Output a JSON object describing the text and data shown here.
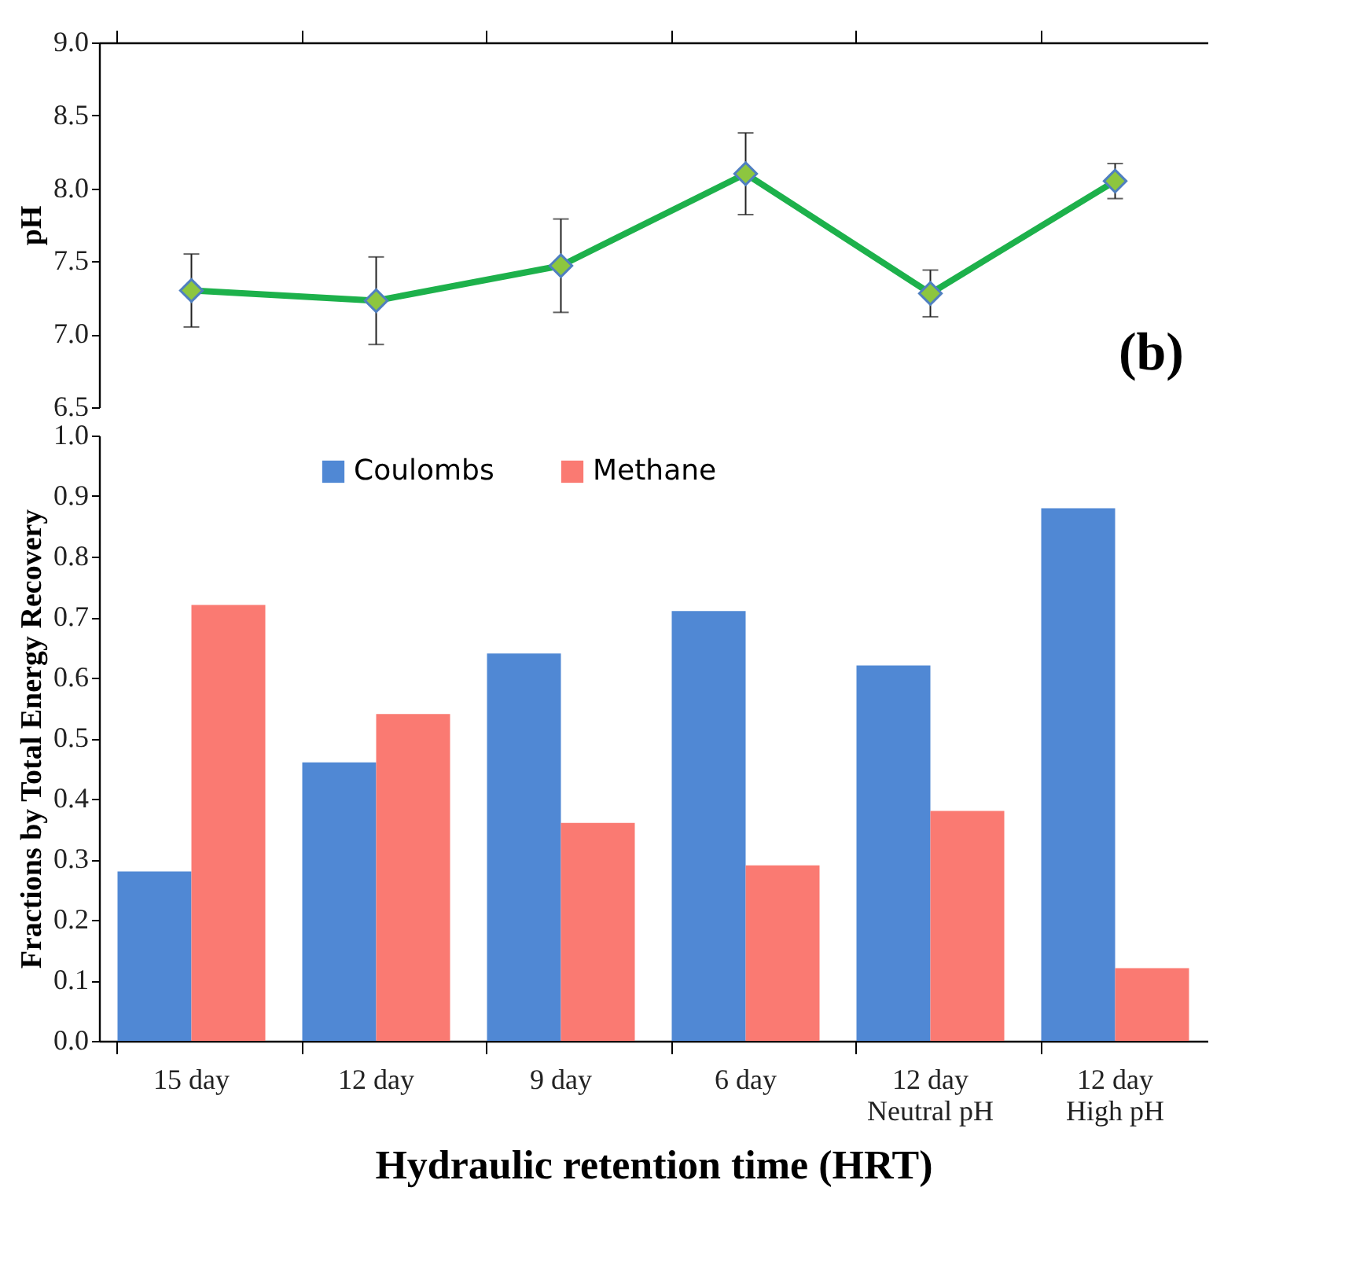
{
  "chart_data": [
    {
      "type": "line",
      "categories": [
        null,
        null,
        null,
        null,
        null,
        null
      ],
      "ylabel": "pH",
      "ylim": [
        6.5,
        9.0
      ],
      "yticks": [
        6.5,
        {
          "value": 7,
          "label": "7.0"
        },
        7.5,
        {
          "value": 8,
          "label": "8.0"
        },
        8.5,
        {
          "value": 9,
          "label": "9.0"
        }
      ],
      "tick_labels": "y",
      "marker": "diamond",
      "annotations": [
        "(b)"
      ],
      "series": [
        {
          "color": "#1db14b",
          "values": [
            7.3,
            7.23,
            7.47,
            8.1,
            7.28,
            8.05
          ],
          "errors": [
            0.25,
            0.3,
            0.32,
            0.28,
            0.16,
            0.12
          ]
        }
      ]
    },
    {
      "type": "bar",
      "categories": [
        "15 day",
        "12 day",
        "9 day",
        "6 day",
        "12 day\nNeutral pH",
        "12 day\nHigh pH"
      ],
      "xlabel": "Hydraulic retention time (HRT)",
      "ylabel": "Fractions by Total Energy Recovery",
      "ylim": [
        0,
        1
      ],
      "yticks": [
        {
          "value": 0,
          "label": "0.0"
        },
        0.1,
        0.2,
        0.3,
        0.4,
        0.5,
        0.6,
        0.7,
        0.8,
        0.9,
        {
          "value": 1,
          "label": "1.0"
        }
      ],
      "legend": "top",
      "series": [
        {
          "name": "Coulombs",
          "color": "#5088d4",
          "values": [
            0.28,
            0.46,
            0.64,
            0.71,
            0.62,
            0.88
          ]
        },
        {
          "name": "Methane",
          "color": "#fa7a72",
          "values": [
            0.72,
            0.54,
            0.36,
            0.29,
            0.38,
            0.12
          ]
        }
      ]
    }
  ]
}
